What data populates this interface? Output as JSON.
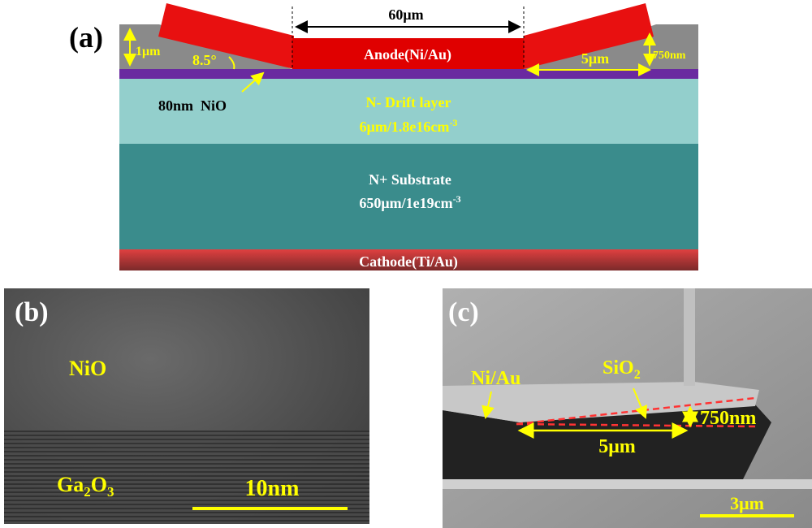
{
  "panels": {
    "a": {
      "label": "(a)",
      "anode_width": "60μm",
      "step_height": "1μm",
      "angle": "8.5°",
      "anode": "Anode(Ni/Au)",
      "plate_length": "5μm",
      "plate_thickness": "750nm",
      "nio": "80nm  NiO",
      "drift": {
        "name": "N- Drift layer",
        "spec": "6μm/1.8e16cm",
        "exp": "-3"
      },
      "substrate": {
        "name": "N+ Substrate",
        "spec": "650μm/1e19cm",
        "exp": "-3"
      },
      "cathode": "Cathode(Ti/Au)"
    },
    "b": {
      "label": "(b)",
      "top_layer": "NiO",
      "bottom_layer": [
        "Ga",
        "2",
        "O",
        "3"
      ],
      "scale": "10nm"
    },
    "c": {
      "label": "(c)",
      "metal": "Ni/Au",
      "oxide": [
        "SiO",
        "2"
      ],
      "thickness": "750nm",
      "length": "5μm",
      "scale": "3μm"
    }
  }
}
